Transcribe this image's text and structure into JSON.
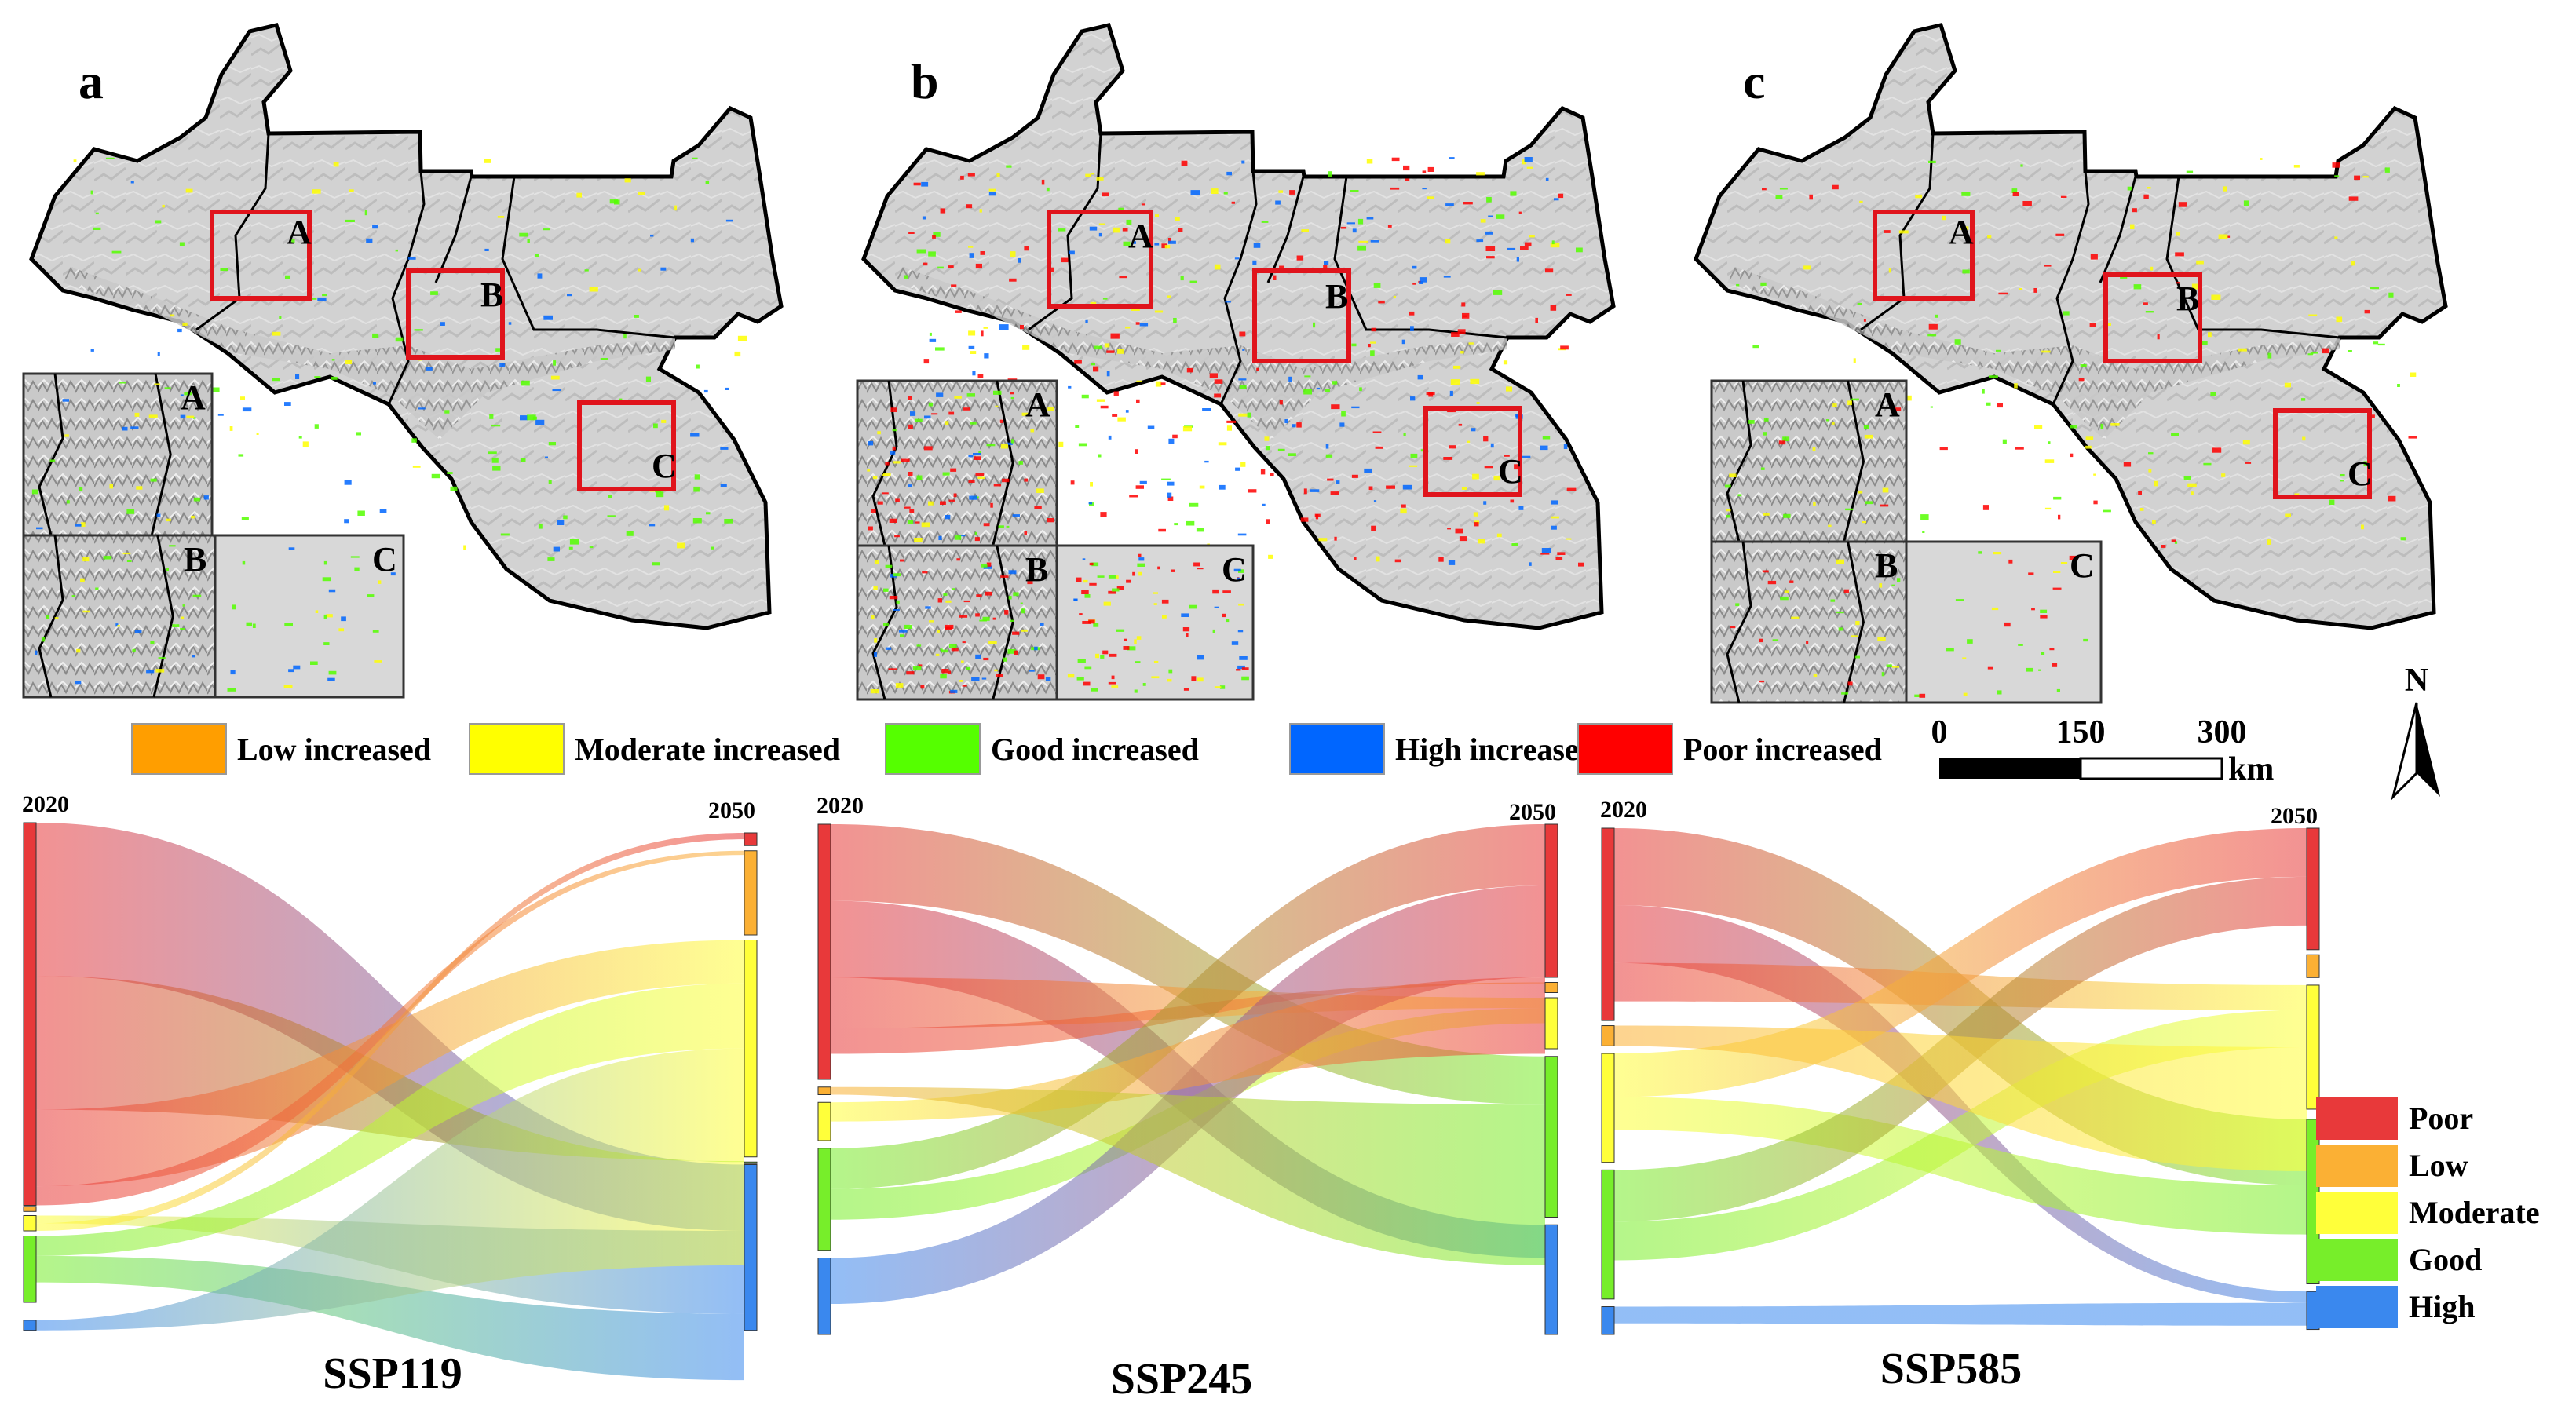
{
  "maps": [
    {
      "panel": "a",
      "boxes": [
        "A",
        "B",
        "C"
      ],
      "insets": [
        "A",
        "B",
        "C"
      ]
    },
    {
      "panel": "b",
      "boxes": [
        "A",
        "B",
        "C"
      ],
      "insets": [
        "A",
        "B",
        "C"
      ]
    },
    {
      "panel": "c",
      "boxes": [
        "A",
        "B",
        "C"
      ],
      "insets": [
        "A",
        "B",
        "C"
      ]
    }
  ],
  "change_legend": [
    {
      "label": "Low increased",
      "color": "#ff9e00"
    },
    {
      "label": "Moderate increased",
      "color": "#ffff00"
    },
    {
      "label": "Good increased",
      "color": "#55ff00"
    },
    {
      "label": "High increased",
      "color": "#0066ff"
    },
    {
      "label": "Poor increased",
      "color": "#ff0000"
    }
  ],
  "scale_bar": {
    "ticks": [
      "0",
      "150",
      "300"
    ],
    "unit": "km"
  },
  "north_arrow": {
    "label": "N"
  },
  "sankey": {
    "year_start": "2020",
    "year_end": "2050",
    "scenarios": [
      "SSP119",
      "SSP245",
      "SSP585"
    ]
  },
  "class_legend": [
    {
      "label": "Poor",
      "color": "#e8393a"
    },
    {
      "label": "Low",
      "color": "#fbb034"
    },
    {
      "label": "Moderate",
      "color": "#ffff3a"
    },
    {
      "label": "Good",
      "color": "#77ee2a"
    },
    {
      "label": "High",
      "color": "#3a88ee"
    }
  ]
}
